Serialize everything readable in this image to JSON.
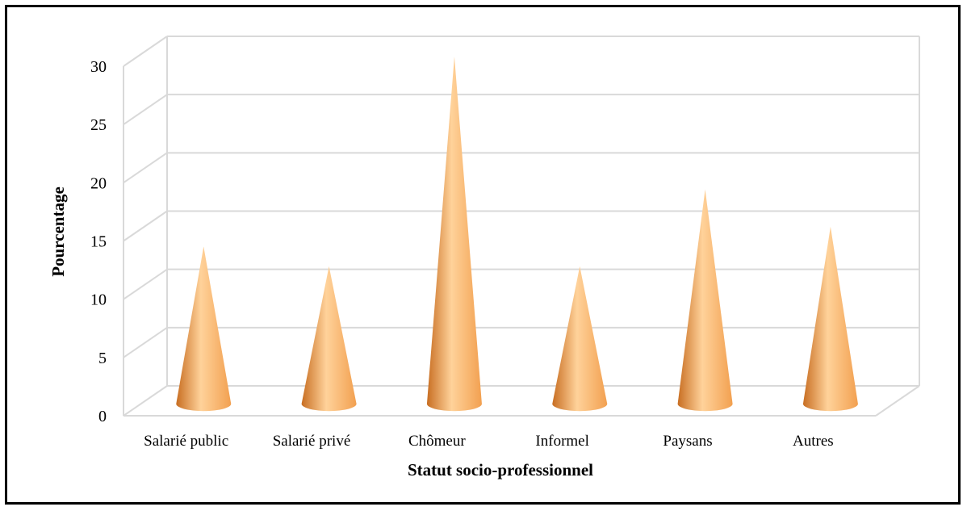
{
  "chart_data": {
    "type": "bar",
    "bar_shape": "cone-3d",
    "title": "",
    "xlabel": "Statut socio-professionnel",
    "ylabel": "Pourcentage",
    "categories": [
      "Salarié public",
      "Salarié privé",
      "Chômeur",
      "Informel",
      "Paysans",
      "Autres"
    ],
    "values": [
      13.5,
      11.8,
      29.8,
      11.8,
      18.4,
      15.2
    ],
    "yticks": [
      0,
      5,
      10,
      15,
      20,
      25,
      30
    ],
    "ylim": [
      0,
      30
    ],
    "grid": true,
    "legend": "none",
    "colors": {
      "cone_main": "#f2a050",
      "cone_light": "#ffd29a",
      "cone_dark": "#c86e22",
      "grid": "#d9d9d9"
    }
  }
}
